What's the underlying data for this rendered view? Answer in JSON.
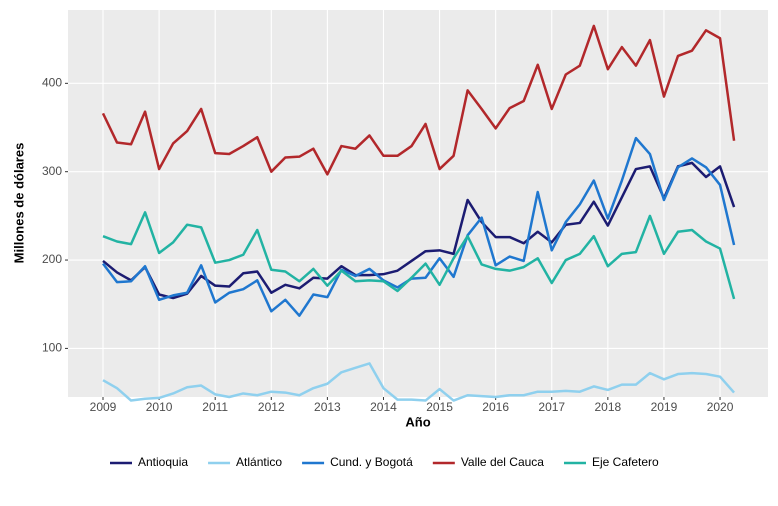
{
  "chart_data": {
    "type": "line",
    "x_label": "Año",
    "y_label": "Millones de dólares",
    "x": [
      2009,
      2009.25,
      2009.5,
      2009.75,
      2010,
      2010.25,
      2010.5,
      2010.75,
      2011,
      2011.25,
      2011.5,
      2011.75,
      2012,
      2012.25,
      2012.5,
      2012.75,
      2013,
      2013.25,
      2013.5,
      2013.75,
      2014,
      2014.25,
      2014.5,
      2014.75,
      2015,
      2015.25,
      2015.5,
      2015.75,
      2016,
      2016.25,
      2016.5,
      2016.75,
      2017,
      2017.25,
      2017.5,
      2017.75,
      2018,
      2018.25,
      2018.5,
      2018.75,
      2019,
      2019.25,
      2019.5,
      2019.75,
      2020,
      2020.25
    ],
    "series": [
      {
        "name": "Antioquia",
        "color": "#1c1c72",
        "values": [
          199,
          186,
          177,
          192,
          161,
          157,
          162,
          182,
          171,
          170,
          185,
          187,
          163,
          172,
          168,
          180,
          179,
          193,
          183,
          183,
          184,
          188,
          199,
          210,
          211,
          207,
          268,
          243,
          226,
          226,
          219,
          232,
          220,
          240,
          242,
          266,
          239,
          271,
          303,
          306,
          270,
          306,
          310,
          294,
          306,
          260
        ]
      },
      {
        "name": "Atlántico",
        "color": "#8fd0ee",
        "values": [
          64,
          55,
          41,
          43,
          44,
          49,
          56,
          58,
          48,
          45,
          49,
          47,
          51,
          50,
          47,
          55,
          60,
          73,
          78,
          83,
          55,
          42,
          42,
          41,
          54,
          41,
          47,
          46,
          45,
          47,
          47,
          51,
          51,
          52,
          51,
          57,
          53,
          59,
          59,
          72,
          65,
          71,
          72,
          71,
          68,
          50
        ]
      },
      {
        "name": "Cund. y Bogotá",
        "color": "#1f77cf",
        "values": [
          196,
          175,
          176,
          193,
          155,
          160,
          163,
          194,
          152,
          163,
          167,
          177,
          142,
          155,
          137,
          161,
          158,
          189,
          182,
          190,
          177,
          169,
          179,
          180,
          202,
          181,
          228,
          248,
          194,
          204,
          199,
          277,
          211,
          243,
          263,
          290,
          247,
          290,
          338,
          320,
          268,
          305,
          315,
          305,
          285,
          217
        ]
      },
      {
        "name": "Valle del Cauca",
        "color": "#b2282b",
        "values": [
          366,
          333,
          331,
          368,
          303,
          332,
          346,
          371,
          321,
          320,
          329,
          339,
          300,
          316,
          317,
          326,
          297,
          329,
          326,
          341,
          318,
          318,
          329,
          354,
          303,
          318,
          392,
          371,
          349,
          372,
          380,
          421,
          371,
          410,
          420,
          465,
          416,
          441,
          420,
          449,
          385,
          431,
          437,
          460,
          451,
          335
        ]
      },
      {
        "name": "Eje Cafetero",
        "color": "#22b3a3",
        "values": [
          227,
          221,
          218,
          254,
          208,
          220,
          240,
          237,
          197,
          200,
          206,
          234,
          189,
          187,
          176,
          190,
          171,
          188,
          176,
          177,
          176,
          165,
          180,
          196,
          172,
          202,
          227,
          195,
          190,
          188,
          192,
          202,
          174,
          200,
          207,
          227,
          193,
          207,
          209,
          250,
          207,
          232,
          234,
          221,
          213,
          156
        ]
      }
    ],
    "xlim": [
      2008.376,
      2020.855
    ],
    "xticks": [
      2009,
      2010,
      2011,
      2012,
      2013,
      2014,
      2015,
      2016,
      2017,
      2018,
      2019,
      2020
    ],
    "ylim": [
      45,
      483
    ],
    "yticks": [
      100,
      200,
      300,
      400
    ],
    "grid": true,
    "legend": "bottom"
  }
}
